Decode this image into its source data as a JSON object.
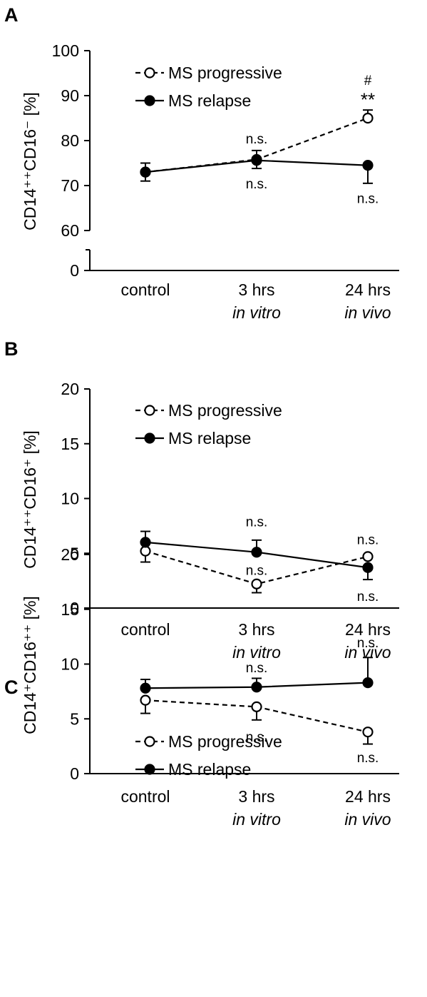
{
  "figure": {
    "panels": [
      "A",
      "B",
      "C"
    ]
  },
  "chart_data": [
    {
      "type": "line",
      "panel": "A",
      "ylabel": "CD14⁺⁺CD16⁻ [%]",
      "categories": [
        {
          "main": "control",
          "sub": ""
        },
        {
          "main": "3 hrs",
          "sub": "in vitro"
        },
        {
          "main": "24 hrs",
          "sub": "in vivo"
        }
      ],
      "yticks": [
        0,
        60,
        70,
        80,
        90,
        100
      ],
      "ylim": [
        60,
        100
      ],
      "axis_break": true,
      "legend": {
        "placement": "top-left"
      },
      "series": [
        {
          "name": "MS progressive",
          "marker": "open-circle",
          "line": "dashed",
          "values": [
            73.0,
            75.8,
            85.0
          ],
          "err_up": [
            2.0,
            2.0,
            1.8
          ],
          "err_down": [
            2.0,
            2.0,
            0
          ]
        },
        {
          "name": "MS relapse",
          "marker": "filled-circle",
          "line": "solid",
          "values": [
            73.0,
            75.6,
            74.5
          ],
          "err_up": [
            0,
            0,
            0
          ],
          "err_down": [
            0,
            0,
            4.0
          ]
        }
      ],
      "annotations": [
        {
          "text": "n.s.",
          "category": 1,
          "y": 80.5
        },
        {
          "text": "n.s.",
          "category": 1,
          "y": 70.5
        },
        {
          "text": "#",
          "category": 2,
          "y": 93.5
        },
        {
          "text": "**",
          "category": 2,
          "y": 88.8
        },
        {
          "text": "n.s.",
          "category": 2,
          "y": 67.2
        }
      ]
    },
    {
      "type": "line",
      "panel": "B",
      "ylabel": "CD14⁺⁺CD16⁺ [%]",
      "categories": [
        {
          "main": "control",
          "sub": ""
        },
        {
          "main": "3 hrs",
          "sub": "in vitro"
        },
        {
          "main": "24 hrs",
          "sub": "in vivo"
        }
      ],
      "yticks": [
        0,
        5,
        10,
        15,
        20
      ],
      "ylim": [
        0,
        20
      ],
      "legend": {
        "placement": "top-left"
      },
      "series": [
        {
          "name": "MS progressive",
          "marker": "open-circle",
          "line": "dashed",
          "values": [
            5.2,
            2.2,
            4.7
          ],
          "err_up": [
            0,
            0,
            0
          ],
          "err_down": [
            1.0,
            0.8,
            0
          ]
        },
        {
          "name": "MS relapse",
          "marker": "filled-circle",
          "line": "solid",
          "values": [
            6.0,
            5.1,
            3.7
          ],
          "err_up": [
            1.0,
            1.1,
            0
          ],
          "err_down": [
            0,
            0,
            1.1
          ]
        }
      ],
      "annotations": [
        {
          "text": "n.s.",
          "category": 1,
          "y": 7.9
        },
        {
          "text": "n.s.",
          "category": 1,
          "y": 3.5
        },
        {
          "text": "n.s.",
          "category": 2,
          "y": 6.3
        },
        {
          "text": "n.s.",
          "category": 2,
          "y": 1.1
        }
      ]
    },
    {
      "type": "line",
      "panel": "C",
      "ylabel": "CD14⁺CD16⁺⁺ [%]",
      "categories": [
        {
          "main": "control",
          "sub": ""
        },
        {
          "main": "3 hrs",
          "sub": "in vitro"
        },
        {
          "main": "24 hrs",
          "sub": "in vivo"
        }
      ],
      "yticks": [
        0,
        5,
        10,
        15,
        20
      ],
      "ylim": [
        0,
        20
      ],
      "legend": {
        "placement": "top-left"
      },
      "series": [
        {
          "name": "MS progressive",
          "marker": "open-circle",
          "line": "dashed",
          "values": [
            6.7,
            6.1,
            3.8
          ],
          "err_up": [
            0,
            0,
            0
          ],
          "err_down": [
            1.2,
            1.2,
            1.1
          ]
        },
        {
          "name": "MS relapse",
          "marker": "filled-circle",
          "line": "solid",
          "values": [
            7.8,
            7.9,
            8.3
          ],
          "err_up": [
            0.8,
            0.8,
            2.3
          ],
          "err_down": [
            0,
            0,
            0
          ]
        }
      ],
      "annotations": [
        {
          "text": "n.s.",
          "category": 1,
          "y": 9.7
        },
        {
          "text": "n.s.",
          "category": 1,
          "y": 3.4
        },
        {
          "text": "n.s.",
          "category": 2,
          "y": 12.0
        },
        {
          "text": "n.s.",
          "category": 2,
          "y": 1.5
        }
      ]
    }
  ]
}
